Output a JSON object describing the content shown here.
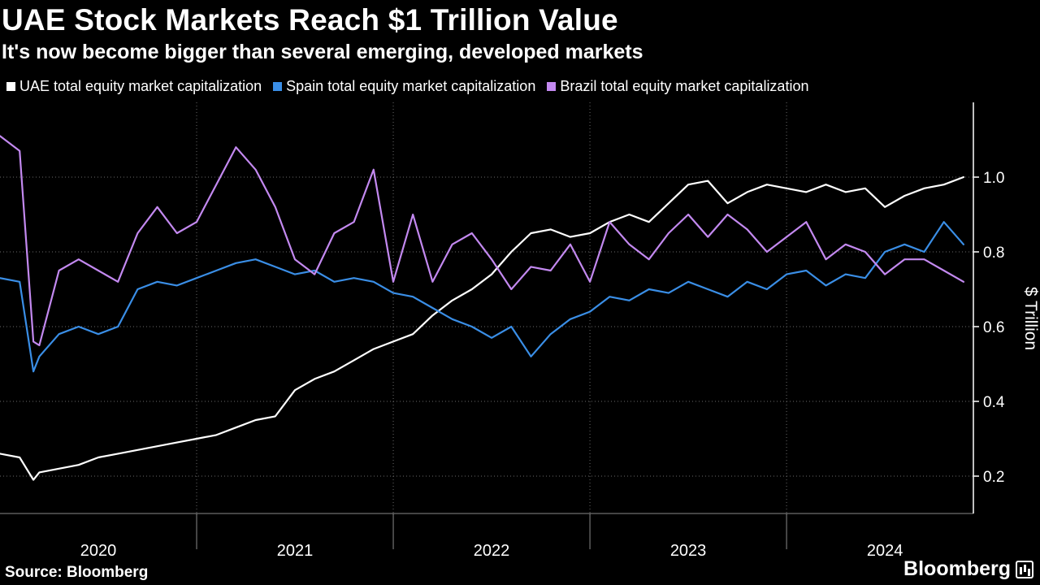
{
  "chart_data": {
    "type": "line",
    "title": "UAE Stock Markets Reach $1 Trillion Value",
    "subtitle": "It's now become bigger than several emerging, developed markets",
    "ylabel": "$ Trillion",
    "ylim": [
      0.1,
      1.2
    ],
    "yticks": [
      0.2,
      0.4,
      0.6,
      0.8,
      1.0
    ],
    "ytick_labels": [
      "0.2",
      "0.4",
      "0.6",
      "0.8",
      "1.0"
    ],
    "xlim": [
      2020.0,
      2024.95
    ],
    "x_categories": [
      "2020",
      "2021",
      "2022",
      "2023",
      "2024"
    ],
    "x_category_centers": [
      2020.5,
      2021.5,
      2022.5,
      2023.5,
      2024.5
    ],
    "x_boundaries": [
      2021.0,
      2022.0,
      2023.0,
      2024.0
    ],
    "legend_position": "top-left",
    "x": [
      2020.0,
      2020.1,
      2020.17,
      2020.2,
      2020.3,
      2020.4,
      2020.5,
      2020.6,
      2020.7,
      2020.8,
      2020.9,
      2021.0,
      2021.1,
      2021.2,
      2021.3,
      2021.4,
      2021.5,
      2021.6,
      2021.7,
      2021.8,
      2021.9,
      2022.0,
      2022.1,
      2022.2,
      2022.3,
      2022.4,
      2022.5,
      2022.6,
      2022.7,
      2022.8,
      2022.9,
      2023.0,
      2023.1,
      2023.2,
      2023.3,
      2023.4,
      2023.5,
      2023.6,
      2023.7,
      2023.8,
      2023.9,
      2024.0,
      2024.1,
      2024.2,
      2024.3,
      2024.4,
      2024.5,
      2024.6,
      2024.7,
      2024.8,
      2024.9
    ],
    "series": [
      {
        "name": "UAE total equity market capitalization",
        "color": "#ffffff",
        "values": [
          0.26,
          0.25,
          0.19,
          0.21,
          0.22,
          0.23,
          0.25,
          0.26,
          0.27,
          0.28,
          0.29,
          0.3,
          0.31,
          0.33,
          0.35,
          0.36,
          0.43,
          0.46,
          0.48,
          0.51,
          0.54,
          0.56,
          0.58,
          0.63,
          0.67,
          0.7,
          0.74,
          0.8,
          0.85,
          0.86,
          0.84,
          0.85,
          0.88,
          0.9,
          0.88,
          0.93,
          0.98,
          0.99,
          0.93,
          0.96,
          0.98,
          0.97,
          0.96,
          0.98,
          0.96,
          0.97,
          0.92,
          0.95,
          0.97,
          0.98,
          1.0
        ]
      },
      {
        "name": "Spain total equity market capitalization",
        "color": "#3a8ee6",
        "values": [
          0.73,
          0.72,
          0.48,
          0.52,
          0.58,
          0.6,
          0.58,
          0.6,
          0.7,
          0.72,
          0.71,
          0.73,
          0.75,
          0.77,
          0.78,
          0.76,
          0.74,
          0.75,
          0.72,
          0.73,
          0.72,
          0.69,
          0.68,
          0.65,
          0.62,
          0.6,
          0.57,
          0.6,
          0.52,
          0.58,
          0.62,
          0.64,
          0.68,
          0.67,
          0.7,
          0.69,
          0.72,
          0.7,
          0.68,
          0.72,
          0.7,
          0.74,
          0.75,
          0.71,
          0.74,
          0.73,
          0.8,
          0.82,
          0.8,
          0.88,
          0.82
        ]
      },
      {
        "name": "Brazil total equity market capitalization",
        "color": "#c389f0",
        "values": [
          1.11,
          1.07,
          0.56,
          0.55,
          0.75,
          0.78,
          0.75,
          0.72,
          0.85,
          0.92,
          0.85,
          0.88,
          0.98,
          1.08,
          1.02,
          0.92,
          0.78,
          0.74,
          0.85,
          0.88,
          1.02,
          0.72,
          0.9,
          0.72,
          0.82,
          0.85,
          0.78,
          0.7,
          0.76,
          0.75,
          0.82,
          0.72,
          0.88,
          0.82,
          0.78,
          0.85,
          0.9,
          0.84,
          0.9,
          0.86,
          0.8,
          0.84,
          0.88,
          0.78,
          0.82,
          0.8,
          0.74,
          0.78,
          0.78,
          0.75,
          0.72
        ]
      }
    ]
  },
  "footer": {
    "source": "Source: Bloomberg",
    "brand": "Bloomberg"
  }
}
